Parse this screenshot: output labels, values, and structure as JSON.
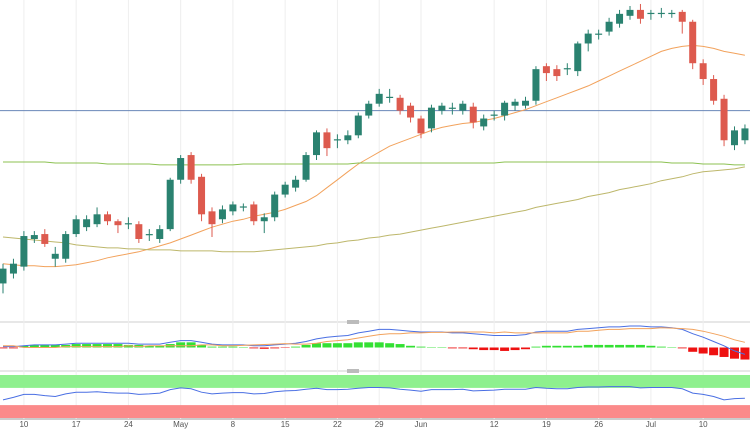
{
  "chart_data": [
    {
      "type": "candlestick",
      "categories": [
        null,
        null,
        "10",
        null,
        null,
        null,
        null,
        "17",
        null,
        null,
        null,
        null,
        "24",
        null,
        null,
        null,
        null,
        "May",
        null,
        null,
        null,
        null,
        "8",
        null,
        null,
        null,
        null,
        "15",
        null,
        null,
        null,
        null,
        "22",
        null,
        null,
        null,
        "29",
        null,
        null,
        null,
        "Jun",
        null,
        null,
        null,
        null,
        null,
        null,
        "12",
        null,
        null,
        null,
        null,
        "19",
        null,
        null,
        null,
        null,
        "26",
        null,
        null,
        null,
        null,
        "Jul",
        null,
        null,
        null,
        null,
        "10",
        null,
        null,
        null,
        null
      ],
      "open": [
        35,
        45,
        52,
        80,
        85,
        60,
        60,
        85,
        92,
        95,
        105,
        98,
        95,
        95,
        84,
        80,
        90,
        140,
        165,
        143,
        108,
        100,
        108,
        112,
        115,
        98,
        102,
        125,
        132,
        140,
        165,
        188,
        180,
        180,
        185,
        205,
        217,
        223,
        223,
        215,
        202,
        192,
        210,
        212,
        210,
        214,
        194,
        205,
        205,
        215,
        215,
        220,
        255,
        252,
        252,
        250,
        278,
        287,
        290,
        298,
        306,
        312,
        308,
        308,
        308,
        310,
        300,
        258,
        242,
        222,
        175,
        180
      ],
      "high": [
        55,
        60,
        88,
        88,
        90,
        72,
        88,
        104,
        104,
        112,
        108,
        100,
        102,
        98,
        90,
        94,
        142,
        165,
        168,
        146,
        112,
        114,
        118,
        116,
        118,
        106,
        128,
        138,
        144,
        168,
        190,
        192,
        186,
        190,
        208,
        220,
        232,
        232,
        226,
        218,
        205,
        216,
        218,
        218,
        220,
        218,
        206,
        210,
        220,
        222,
        224,
        255,
        258,
        256,
        258,
        280,
        292,
        292,
        304,
        312,
        316,
        318,
        312,
        314,
        312,
        312,
        302,
        262,
        246,
        226,
        194,
        196
      ],
      "low": [
        25,
        40,
        48,
        76,
        72,
        52,
        56,
        82,
        88,
        92,
        94,
        86,
        90,
        76,
        78,
        76,
        88,
        136,
        136,
        98,
        82,
        96,
        104,
        108,
        94,
        86,
        98,
        122,
        128,
        138,
        160,
        164,
        172,
        176,
        182,
        202,
        214,
        218,
        206,
        198,
        182,
        188,
        206,
        206,
        206,
        192,
        190,
        200,
        200,
        210,
        212,
        216,
        240,
        240,
        246,
        245,
        270,
        282,
        286,
        294,
        302,
        298,
        302,
        304,
        304,
        288,
        252,
        236,
        216,
        174,
        170,
        176
      ],
      "close": [
        50,
        55,
        83,
        84,
        75,
        65,
        85,
        100,
        100,
        105,
        98,
        94,
        96,
        80,
        85,
        90,
        140,
        162,
        140,
        105,
        95,
        110,
        115,
        113,
        98,
        102,
        125,
        135,
        140,
        165,
        188,
        172,
        181,
        185,
        205,
        217,
        227,
        224,
        210,
        203,
        187,
        213,
        215,
        213,
        217,
        198,
        202,
        206,
        218,
        219,
        220,
        252,
        248,
        245,
        253,
        278,
        288,
        288,
        300,
        308,
        312,
        303,
        309,
        309,
        309,
        300,
        258,
        242,
        220,
        180,
        190,
        192
      ],
      "up_color": "#2a8270",
      "down_color": "#dd5a4e",
      "ylim": [
        0,
        320
      ],
      "level": 210,
      "level_color": "#6a87b8",
      "series": [
        {
          "color": "#f2a25c",
          "values": [
            55,
            54,
            53,
            53,
            52,
            52,
            53,
            54,
            56,
            58,
            61,
            63,
            65,
            67,
            70,
            73,
            76,
            80,
            84,
            88,
            92,
            95,
            98,
            100,
            103,
            105,
            107,
            110,
            114,
            118,
            124,
            132,
            140,
            148,
            156,
            162,
            168,
            174,
            178,
            182,
            186,
            190,
            193,
            195,
            197,
            198,
            200,
            202,
            205,
            208,
            211,
            215,
            219,
            223,
            227,
            231,
            235,
            240,
            245,
            250,
            255,
            260,
            265,
            270,
            273,
            275,
            276,
            275,
            273,
            270,
            268,
            266
          ]
        },
        {
          "color": "#bdb76b",
          "values": [
            82,
            81,
            80,
            79,
            78,
            77,
            76,
            74,
            73,
            72,
            71,
            71,
            70,
            70,
            69,
            69,
            69,
            68,
            68,
            68,
            68,
            67,
            67,
            67,
            67,
            68,
            69,
            70,
            71,
            72,
            73,
            75,
            76,
            78,
            79,
            81,
            82,
            84,
            85,
            87,
            89,
            91,
            93,
            95,
            97,
            99,
            101,
            103,
            105,
            107,
            109,
            112,
            114,
            116,
            118,
            120,
            123,
            125,
            127,
            130,
            132,
            134,
            136,
            139,
            141,
            143,
            146,
            148,
            149,
            150,
            151,
            153
          ]
        },
        {
          "color": "#8cc152",
          "values": [
            158,
            158,
            158,
            158,
            158,
            157,
            157,
            157,
            157,
            157,
            156,
            156,
            156,
            156,
            156,
            155,
            155,
            155,
            155,
            155,
            155,
            155,
            155,
            156,
            156,
            156,
            156,
            156,
            156,
            156,
            156,
            156,
            156,
            156,
            157,
            157,
            157,
            157,
            157,
            157,
            157,
            157,
            157,
            157,
            157,
            157,
            157,
            157,
            158,
            158,
            158,
            158,
            158,
            158,
            158,
            158,
            158,
            158,
            158,
            158,
            158,
            158,
            158,
            158,
            157,
            157,
            157,
            156,
            156,
            156,
            155,
            155
          ]
        }
      ]
    },
    {
      "type": "macd",
      "ylim": [
        -25,
        25
      ],
      "hist_up_color": "#33e033",
      "hist_down_color": "#ee1111",
      "histogram": [
        -1,
        -1,
        2,
        3,
        3,
        3,
        3,
        4,
        4,
        4,
        4,
        4,
        3,
        3,
        2,
        2,
        4,
        6,
        6,
        3,
        1,
        1,
        1,
        0.5,
        -1,
        -1.5,
        -1,
        -0.5,
        1,
        3,
        5,
        5,
        5,
        5,
        6,
        6,
        6,
        5,
        4,
        2,
        1,
        0.5,
        0.5,
        -1,
        -1,
        -2,
        -3,
        -3,
        -4,
        -3,
        -2,
        1,
        2,
        2,
        2,
        2,
        3,
        3,
        3,
        3,
        3,
        3,
        2,
        1,
        0.5,
        -1,
        -5,
        -7,
        -9,
        -11,
        -13,
        -14
      ],
      "series": [
        {
          "color": "#4a6fe3",
          "values": [
            1,
            1,
            2,
            3,
            3,
            3,
            4,
            5,
            5,
            5,
            5,
            5,
            5,
            4,
            4,
            4,
            6,
            8,
            8,
            6,
            4,
            3,
            3,
            3,
            2,
            2,
            3,
            4,
            5,
            7,
            10,
            12,
            13,
            14,
            17,
            19,
            21,
            21,
            20,
            19,
            18,
            18,
            18,
            17,
            17,
            16,
            15,
            14,
            14,
            14,
            15,
            18,
            19,
            19,
            19,
            21,
            22,
            23,
            24,
            24,
            25,
            25,
            24,
            24,
            23,
            21,
            16,
            12,
            7,
            2,
            -4,
            -8
          ]
        },
        {
          "color": "#f2a25c",
          "values": [
            2,
            2,
            0,
            0,
            0,
            0,
            1,
            1,
            1,
            1,
            1,
            1,
            2,
            1,
            2,
            2,
            2,
            2,
            2,
            3,
            3,
            2,
            2,
            2.5,
            3,
            3.5,
            4,
            4.5,
            4,
            4,
            5,
            7,
            8,
            9,
            11,
            13,
            15,
            16,
            16,
            17,
            17,
            17.5,
            17.5,
            18,
            18,
            18,
            18,
            17,
            18,
            17,
            17,
            17,
            17,
            17,
            17,
            19,
            19,
            20,
            21,
            21,
            22,
            22,
            22,
            23,
            22.5,
            22,
            21,
            19,
            16,
            13,
            9,
            6
          ]
        }
      ]
    },
    {
      "type": "rsi",
      "ylim": [
        0,
        100
      ],
      "bands": [
        {
          "range": [
            70,
            100
          ],
          "color": "#8ef08e"
        },
        {
          "range": [
            0,
            30
          ],
          "color": "#fb8a8a"
        }
      ],
      "color": "#4a6fe3",
      "values": [
        42,
        48,
        55,
        55,
        52,
        50,
        56,
        60,
        60,
        61,
        59,
        58,
        58,
        55,
        56,
        58,
        66,
        70,
        68,
        60,
        56,
        58,
        59,
        59,
        56,
        57,
        61,
        63,
        64,
        67,
        69,
        66,
        66,
        67,
        69,
        71,
        71,
        70,
        67,
        65,
        62,
        66,
        66,
        66,
        67,
        63,
        64,
        65,
        67,
        67,
        67,
        71,
        69,
        68,
        68,
        71,
        72,
        72,
        73,
        73,
        73,
        70,
        71,
        71,
        71,
        68,
        58,
        55,
        50,
        42,
        45,
        46
      ]
    }
  ]
}
